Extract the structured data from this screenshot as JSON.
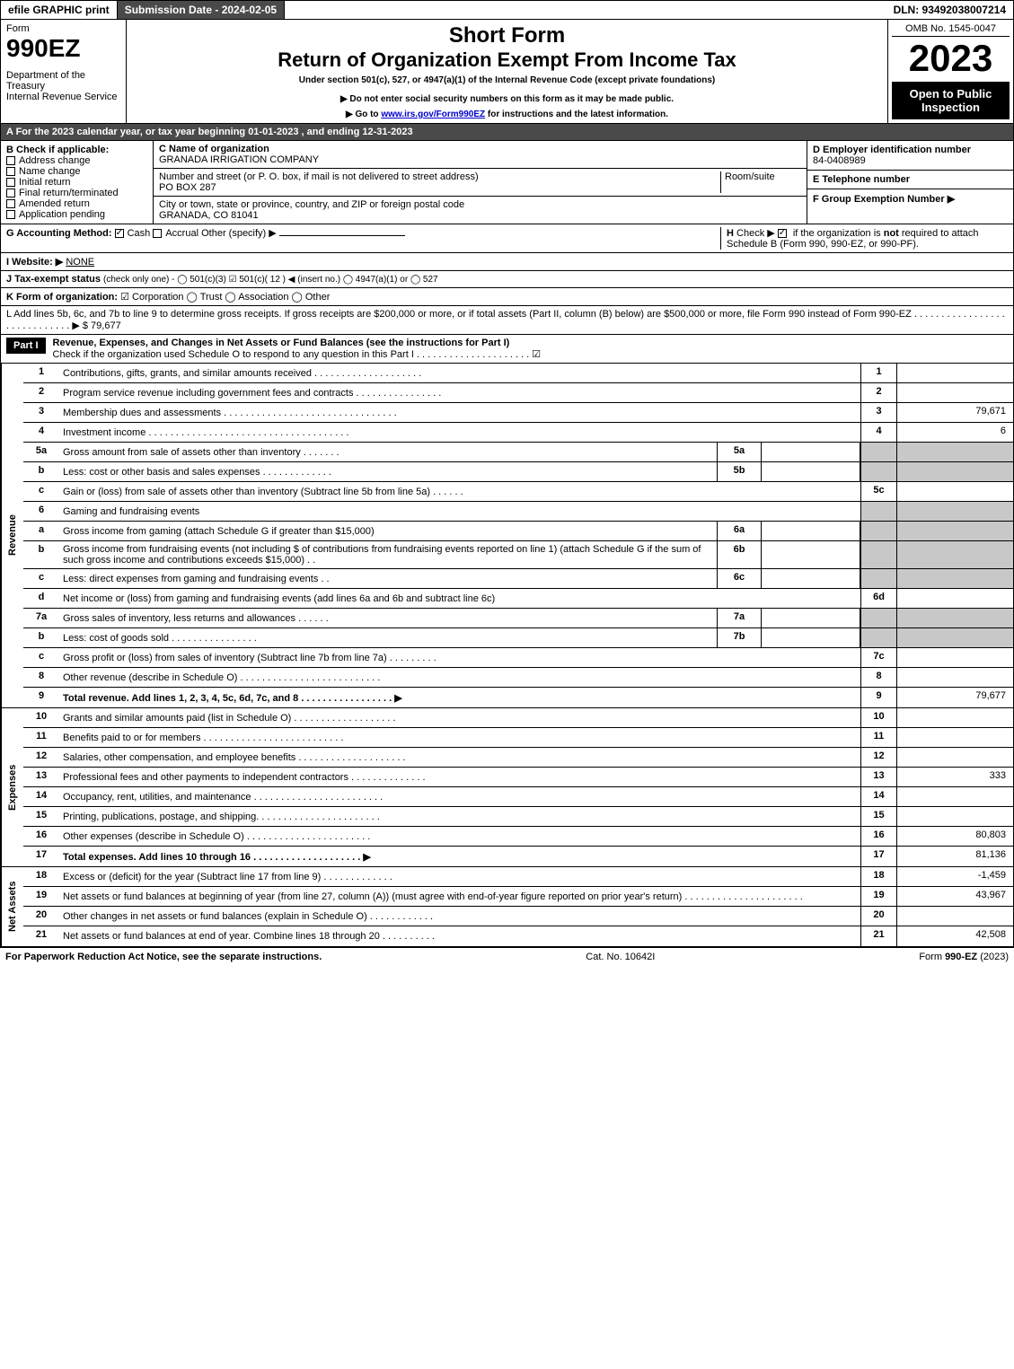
{
  "topbar": {
    "efile": "efile GRAPHIC print",
    "submission_label": "Submission Date - 2024-02-05",
    "dln": "DLN: 93492038007214"
  },
  "header": {
    "form_word": "Form",
    "form_num": "990EZ",
    "dept": "Department of the Treasury",
    "irs": "Internal Revenue Service",
    "short_form": "Short Form",
    "main_title": "Return of Organization Exempt From Income Tax",
    "subtitle": "Under section 501(c), 527, or 4947(a)(1) of the Internal Revenue Code (except private foundations)",
    "note1": "▶ Do not enter social security numbers on this form as it may be made public.",
    "note2": "▶ Go to www.irs.gov/Form990EZ for instructions and the latest information.",
    "omb": "OMB No. 1545-0047",
    "year": "2023",
    "open": "Open to Public Inspection"
  },
  "A": {
    "text": "A  For the 2023 calendar year, or tax year beginning 01-01-2023 , and ending 12-31-2023"
  },
  "B": {
    "label": "B  Check if applicable:",
    "opts": [
      "Address change",
      "Name change",
      "Initial return",
      "Final return/terminated",
      "Amended return",
      "Application pending"
    ]
  },
  "C": {
    "label": "C Name of organization",
    "name": "GRANADA IRRIGATION COMPANY",
    "addr_label": "Number and street (or P. O. box, if mail is not delivered to street address)",
    "room": "Room/suite",
    "addr": "PO BOX 287",
    "city_label": "City or town, state or province, country, and ZIP or foreign postal code",
    "city": "GRANADA, CO  81041"
  },
  "D": {
    "label": "D Employer identification number",
    "val": "84-0408989"
  },
  "E": {
    "label": "E Telephone number",
    "val": ""
  },
  "F": {
    "label": "F Group Exemption Number  ▶"
  },
  "G": {
    "label": "G Accounting Method:",
    "cash": "Cash",
    "accrual": "Accrual",
    "other": "Other (specify) ▶"
  },
  "H": {
    "text": "H  Check ▶ ☑ if the organization is not required to attach Schedule B (Form 990, 990-EZ, or 990-PF)."
  },
  "I": {
    "label": "I Website: ▶",
    "val": "NONE"
  },
  "J": {
    "label": "J Tax-exempt status",
    "rest": "(check only one) - ◯ 501(c)(3) ☑ 501(c)( 12 ) ◀ (insert no.) ◯ 4947(a)(1) or ◯ 527"
  },
  "K": {
    "label": "K Form of organization:",
    "rest": "☑ Corporation  ◯ Trust  ◯ Association  ◯ Other"
  },
  "L": {
    "text": "L Add lines 5b, 6c, and 7b to line 9 to determine gross receipts. If gross receipts are $200,000 or more, or if total assets (Part II, column (B) below) are $500,000 or more, file Form 990 instead of Form 990-EZ . . . . . . . . . . . . . . . . . . . . . . . . . . . . .  ▶ $ 79,677"
  },
  "part1": {
    "hdr": "Part I",
    "title": "Revenue, Expenses, and Changes in Net Assets or Fund Balances (see the instructions for Part I)",
    "sub": "Check if the organization used Schedule O to respond to any question in this Part I . . . . . . . . . . . . . . . . . . . . .  ☑"
  },
  "sections": {
    "revenue": "Revenue",
    "expenses": "Expenses",
    "netassets": "Net Assets"
  },
  "lines": {
    "1": {
      "d": "Contributions, gifts, grants, and similar amounts received . . . . . . . . . . . . . . . . . . . .",
      "r": "1",
      "v": ""
    },
    "2": {
      "d": "Program service revenue including government fees and contracts . . . . . . . . . . . . . . . .",
      "r": "2",
      "v": ""
    },
    "3": {
      "d": "Membership dues and assessments . . . . . . . . . . . . . . . . . . . . . . . . . . . . . . . .",
      "r": "3",
      "v": "79,671"
    },
    "4": {
      "d": "Investment income . . . . . . . . . . . . . . . . . . . . . . . . . . . . . . . . . . . . .",
      "r": "4",
      "v": "6"
    },
    "5a": {
      "d": "Gross amount from sale of assets other than inventory . . . . . . .",
      "sub": "5a"
    },
    "5b": {
      "d": "Less: cost or other basis and sales expenses . . . . . . . . . . . . .",
      "sub": "5b"
    },
    "5c": {
      "d": "Gain or (loss) from sale of assets other than inventory (Subtract line 5b from line 5a) . . . . . .",
      "r": "5c",
      "v": ""
    },
    "6": {
      "d": "Gaming and fundraising events"
    },
    "6a": {
      "d": "Gross income from gaming (attach Schedule G if greater than $15,000)",
      "sub": "6a"
    },
    "6b": {
      "d": "Gross income from fundraising events (not including $                 of contributions from fundraising events reported on line 1) (attach Schedule G if the sum of such gross income and contributions exceeds $15,000)   . .",
      "sub": "6b"
    },
    "6c": {
      "d": "Less: direct expenses from gaming and fundraising events   . .",
      "sub": "6c"
    },
    "6d": {
      "d": "Net income or (loss) from gaming and fundraising events (add lines 6a and 6b and subtract line 6c)",
      "r": "6d",
      "v": ""
    },
    "7a": {
      "d": "Gross sales of inventory, less returns and allowances . . . . . .",
      "sub": "7a"
    },
    "7b": {
      "d": "Less: cost of goods sold       . . . . . . . . . . . . . . . .",
      "sub": "7b"
    },
    "7c": {
      "d": "Gross profit or (loss) from sales of inventory (Subtract line 7b from line 7a) . . . . . . . . .",
      "r": "7c",
      "v": ""
    },
    "8": {
      "d": "Other revenue (describe in Schedule O) . . . . . . . . . . . . . . . . . . . . . . . . . .",
      "r": "8",
      "v": ""
    },
    "9": {
      "d": "Total revenue. Add lines 1, 2, 3, 4, 5c, 6d, 7c, and 8  . . . . . . . . . . . . . . . . .  ▶",
      "r": "9",
      "v": "79,677",
      "bold": true
    },
    "10": {
      "d": "Grants and similar amounts paid (list in Schedule O) . . . . . . . . . . . . . . . . . . .",
      "r": "10",
      "v": ""
    },
    "11": {
      "d": "Benefits paid to or for members     . . . . . . . . . . . . . . . . . . . . . . . . . .",
      "r": "11",
      "v": ""
    },
    "12": {
      "d": "Salaries, other compensation, and employee benefits . . . . . . . . . . . . . . . . . . . .",
      "r": "12",
      "v": ""
    },
    "13": {
      "d": "Professional fees and other payments to independent contractors . . . . . . . . . . . . . .",
      "r": "13",
      "v": "333"
    },
    "14": {
      "d": "Occupancy, rent, utilities, and maintenance . . . . . . . . . . . . . . . . . . . . . . . .",
      "r": "14",
      "v": ""
    },
    "15": {
      "d": "Printing, publications, postage, and shipping. . . . . . . . . . . . . . . . . . . . . . .",
      "r": "15",
      "v": ""
    },
    "16": {
      "d": "Other expenses (describe in Schedule O)    . . . . . . . . . . . . . . . . . . . . . . .",
      "r": "16",
      "v": "80,803"
    },
    "17": {
      "d": "Total expenses. Add lines 10 through 16    . . . . . . . . . . . . . . . . . . . .  ▶",
      "r": "17",
      "v": "81,136",
      "bold": true
    },
    "18": {
      "d": "Excess or (deficit) for the year (Subtract line 17 from line 9)      . . . . . . . . . . . . .",
      "r": "18",
      "v": "-1,459"
    },
    "19": {
      "d": "Net assets or fund balances at beginning of year (from line 27, column (A)) (must agree with end-of-year figure reported on prior year's return) . . . . . . . . . . . . . . . . . . . . . .",
      "r": "19",
      "v": "43,967"
    },
    "20": {
      "d": "Other changes in net assets or fund balances (explain in Schedule O) . . . . . . . . . . . .",
      "r": "20",
      "v": ""
    },
    "21": {
      "d": "Net assets or fund balances at end of year. Combine lines 18 through 20 . . . . . . . . . .",
      "r": "21",
      "v": "42,508"
    }
  },
  "footer": {
    "left": "For Paperwork Reduction Act Notice, see the separate instructions.",
    "mid": "Cat. No. 10642I",
    "right": "Form 990-EZ (2023)"
  }
}
